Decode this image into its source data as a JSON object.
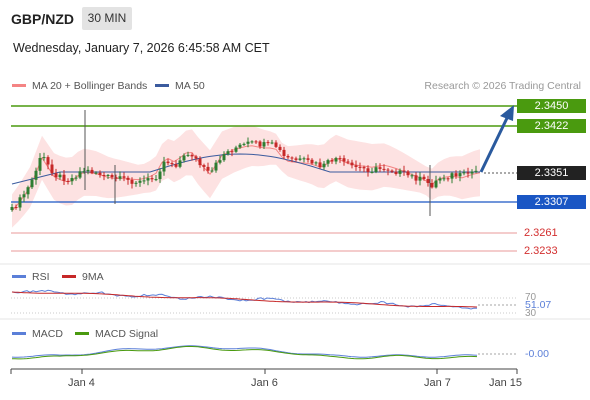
{
  "header": {
    "symbol": "GBP/NZD",
    "timeframe": "30 MIN",
    "datetime": "Wednesday, January 7, 2026 6:45:58 AM CET"
  },
  "legend": {
    "ma20_label": "MA 20 + Bollinger Bands",
    "ma50_label": "MA 50",
    "credit": "Research © 2026 Trading Central"
  },
  "levels": {
    "resistance_2": "2.3450",
    "resistance_1": "2.3422",
    "current": "2.3351",
    "support_1": "2.3307",
    "support_2": "2.3261",
    "support_3": "2.3233"
  },
  "rsi": {
    "label": "RSI",
    "ma_label": "9MA",
    "level_70": "70",
    "level_30": "30",
    "value": "51.07"
  },
  "macd": {
    "label": "MACD",
    "signal_label": "MACD Signal",
    "value": "-0.00"
  },
  "xaxis": {
    "labels": [
      "Jan 4",
      "Jan 6",
      "Jan 7",
      "Jan 15"
    ]
  },
  "colors": {
    "resistance": "#4a9a0f",
    "support": "#1a56c4",
    "support_red": "#e57373",
    "candle_up": "#2e7d32",
    "candle_down": "#c62828",
    "bollinger_fill": "#fde2e2",
    "ma20": "#f48484",
    "ma50": "#3b5b9e",
    "rsi": "#5b7fd8",
    "rsi_ma": "#c62828",
    "macd": "#5b7fd8",
    "macd_signal": "#4a9a0f",
    "arrow": "#2a5a9e"
  }
}
